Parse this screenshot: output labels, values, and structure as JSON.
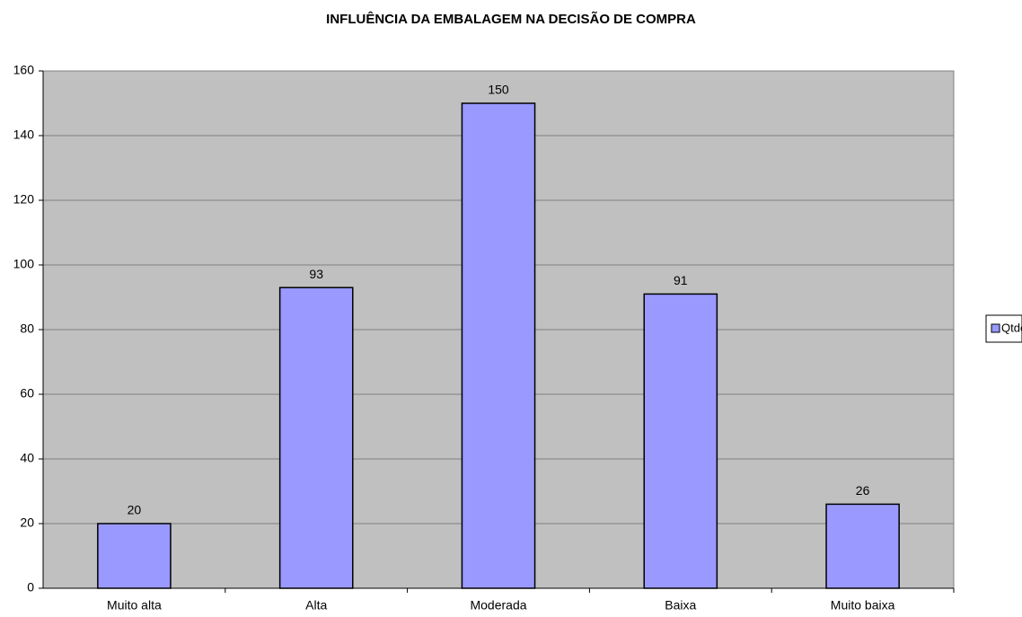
{
  "chart_data": {
    "type": "bar",
    "title": "INFLUÊNCIA DA EMBALAGEM NA DECISÃO DE COMPRA",
    "categories": [
      "Muito alta",
      "Alta",
      "Moderada",
      "Baixa",
      "Muito baixa"
    ],
    "series": [
      {
        "name": "Qtde.",
        "color": "#9999ff",
        "values": [
          20,
          93,
          150,
          91,
          26
        ]
      }
    ],
    "ylim": [
      0,
      160
    ],
    "yticks": [
      0,
      20,
      40,
      60,
      80,
      100,
      120,
      140,
      160
    ],
    "grid": true,
    "legend": "right"
  }
}
